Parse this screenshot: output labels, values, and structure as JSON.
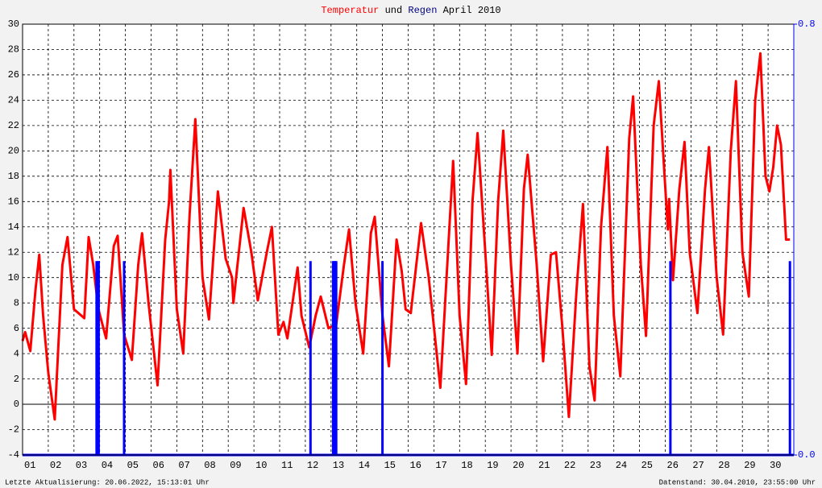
{
  "chart_data": {
    "type": "line",
    "title_joiner": "und",
    "title_suffix": "April 2010",
    "footer_left": "Letzte Aktualisierung: 20.06.2022, 15:13:01 Uhr",
    "footer_right": "Datenstand: 30.04.2010, 23:55:00 Uhr",
    "xlim": [
      1,
      31
    ],
    "xticks": [
      {
        "value": 1,
        "label": "01"
      },
      {
        "value": 2,
        "label": "02"
      },
      {
        "value": 3,
        "label": "03"
      },
      {
        "value": 4,
        "label": "04"
      },
      {
        "value": 5,
        "label": "05"
      },
      {
        "value": 6,
        "label": "06"
      },
      {
        "value": 7,
        "label": "07"
      },
      {
        "value": 8,
        "label": "08"
      },
      {
        "value": 9,
        "label": "09"
      },
      {
        "value": 10,
        "label": "10"
      },
      {
        "value": 11,
        "label": "11"
      },
      {
        "value": 12,
        "label": "12"
      },
      {
        "value": 13,
        "label": "13"
      },
      {
        "value": 14,
        "label": "14"
      },
      {
        "value": 15,
        "label": "15"
      },
      {
        "value": 16,
        "label": "16"
      },
      {
        "value": 17,
        "label": "17"
      },
      {
        "value": 18,
        "label": "18"
      },
      {
        "value": 19,
        "label": "19"
      },
      {
        "value": 20,
        "label": "20"
      },
      {
        "value": 21,
        "label": "21"
      },
      {
        "value": 22,
        "label": "22"
      },
      {
        "value": 23,
        "label": "23"
      },
      {
        "value": 24,
        "label": "24"
      },
      {
        "value": 25,
        "label": "25"
      },
      {
        "value": 26,
        "label": "26"
      },
      {
        "value": 27,
        "label": "27"
      },
      {
        "value": 28,
        "label": "28"
      },
      {
        "value": 29,
        "label": "29"
      },
      {
        "value": 30,
        "label": "30"
      }
    ],
    "ylim": [
      -4,
      30
    ],
    "yticks": [
      -4,
      -2,
      0,
      2,
      4,
      6,
      8,
      10,
      12,
      14,
      16,
      18,
      20,
      22,
      24,
      26,
      28,
      30
    ],
    "y2lim": [
      0,
      0.8
    ],
    "y2ticks": [
      {
        "value": 0,
        "label": "0.0"
      },
      {
        "value": 0.8,
        "label": "0.8"
      }
    ],
    "grid": true,
    "series": [
      {
        "name": "Temperatur",
        "color": "#ff0000",
        "x": [
          1.0,
          1.1,
          1.3,
          1.5,
          1.65,
          1.8,
          2.0,
          2.25,
          2.55,
          2.75,
          3.0,
          3.4,
          3.57,
          3.75,
          3.95,
          4.25,
          4.55,
          4.7,
          4.95,
          5.25,
          5.5,
          5.65,
          5.9,
          6.25,
          6.55,
          6.7,
          6.75,
          7.0,
          7.25,
          7.5,
          7.72,
          8.0,
          8.25,
          8.6,
          8.9,
          9.15,
          9.2,
          9.6,
          9.9,
          10.15,
          10.5,
          10.7,
          10.95,
          11.15,
          11.3,
          11.7,
          11.85,
          12.15,
          12.4,
          12.6,
          12.9,
          13.2,
          13.5,
          13.7,
          13.95,
          14.25,
          14.55,
          14.7,
          15.0,
          15.25,
          15.55,
          15.75,
          15.9,
          16.1,
          16.5,
          16.8,
          17.25,
          17.55,
          17.75,
          18.0,
          18.25,
          18.5,
          18.7,
          19.0,
          19.25,
          19.5,
          19.7,
          20.0,
          20.25,
          20.5,
          20.65,
          21.0,
          21.25,
          21.55,
          21.75,
          22.0,
          22.25,
          22.55,
          22.8,
          23.05,
          23.25,
          23.5,
          23.75,
          24.0,
          24.25,
          24.6,
          24.75,
          25.05,
          25.25,
          25.55,
          25.75,
          26.1,
          26.15,
          26.3,
          26.55,
          26.75,
          26.95,
          27.25,
          27.55,
          27.7,
          28.0,
          28.25,
          28.55,
          28.75,
          29.0,
          29.25,
          29.5,
          29.7,
          29.9,
          30.05,
          30.2,
          30.35,
          30.5,
          30.7,
          30.85
        ],
        "values": [
          5,
          5.7,
          4.2,
          9,
          11.8,
          7,
          2.5,
          -1.2,
          11,
          13.2,
          7.5,
          6.8,
          13.2,
          11,
          7.5,
          5.2,
          12.5,
          13.3,
          5.5,
          3.5,
          11,
          13.5,
          8,
          1.5,
          13,
          16,
          18.5,
          7.5,
          4,
          15,
          22.5,
          10,
          6.7,
          16.8,
          11.5,
          10,
          8,
          15.5,
          12,
          8.2,
          12,
          14,
          5.5,
          6.5,
          5.2,
          10.8,
          7,
          4.5,
          7,
          8.5,
          6,
          6.3,
          11,
          13.8,
          8,
          4,
          13.5,
          14.8,
          7,
          3,
          13,
          10.5,
          7.5,
          7.2,
          14.3,
          10,
          1.3,
          12,
          19.2,
          7,
          1.6,
          16,
          21.4,
          12,
          3.9,
          16,
          21.6,
          11,
          4,
          17,
          19.7,
          11,
          3.4,
          11.8,
          12,
          6,
          -1,
          9,
          15.8,
          3,
          0.3,
          14,
          20.3,
          7,
          2.2,
          21,
          24.3,
          11,
          5.4,
          22,
          25.5,
          13.8,
          16.2,
          9.8,
          17,
          20.7,
          12,
          7.2,
          17,
          20.3,
          10,
          5.5,
          20,
          25.5,
          12,
          8.5,
          24,
          27.7,
          18,
          16.8,
          18.7,
          22,
          20.5,
          13,
          13
        ]
      },
      {
        "name": "Regen",
        "color": "#0000ff",
        "axis": "y2",
        "x": [
          3.88,
          3.92,
          3.96,
          4.95,
          12.2,
          13.08,
          13.12,
          13.16,
          13.2,
          15.0,
          26.2,
          30.85
        ],
        "values": [
          0.36,
          0.36,
          0.36,
          0.36,
          0.36,
          0.36,
          0.36,
          0.36,
          0.36,
          0.36,
          0.36,
          0.36
        ]
      }
    ]
  }
}
